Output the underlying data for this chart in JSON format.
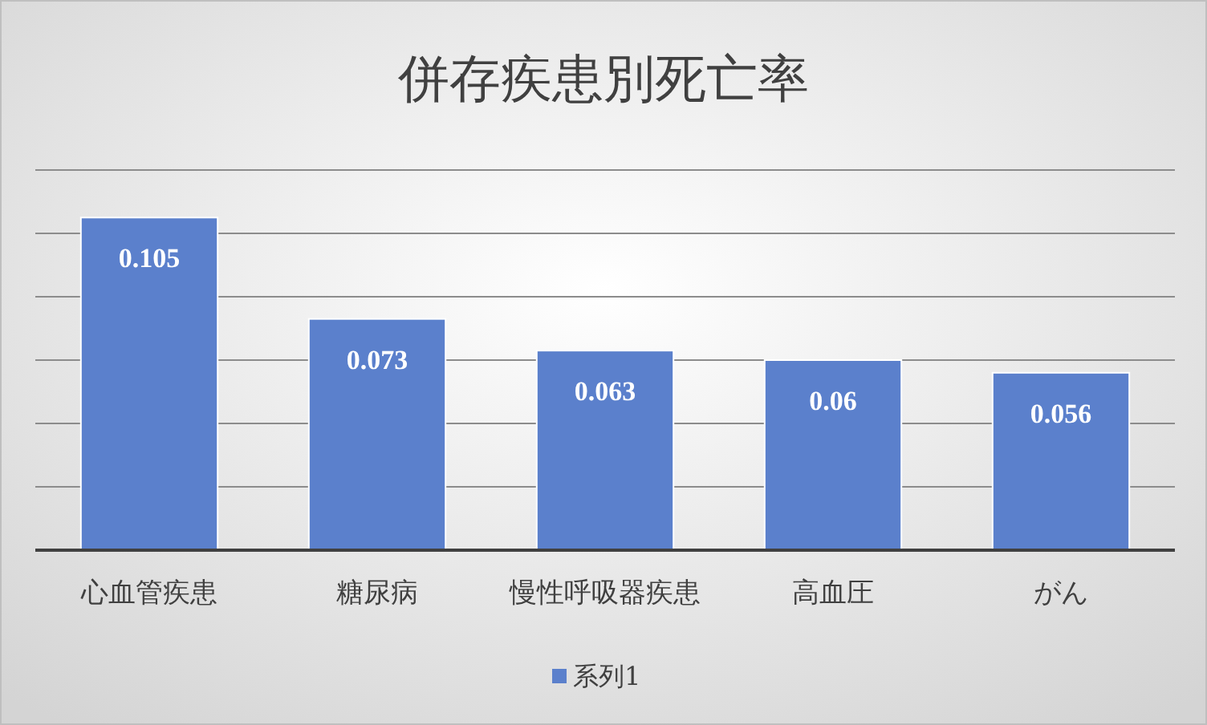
{
  "chart_data": {
    "type": "bar",
    "title": "併存疾患別死亡率",
    "categories": [
      "心血管疾患",
      "糖尿病",
      "慢性呼吸器疾患",
      "高血圧",
      "がん"
    ],
    "series": [
      {
        "name": "系列1",
        "color": "#5b80cc",
        "values": [
          0.105,
          0.073,
          0.063,
          0.06,
          0.056
        ]
      }
    ],
    "ylim": [
      0,
      0.12
    ],
    "yticks": [
      {
        "value": 0,
        "label": null
      },
      {
        "value": 0.02,
        "label": null
      },
      {
        "value": 0.04,
        "label": null
      },
      {
        "value": 0.06,
        "label": null
      },
      {
        "value": 0.08,
        "label": null
      },
      {
        "value": 0.1,
        "label": null
      },
      {
        "value": 0.12,
        "label": null
      }
    ],
    "grid": "y",
    "legend": "bottom",
    "data_labels": true,
    "tick_labels": "x"
  }
}
